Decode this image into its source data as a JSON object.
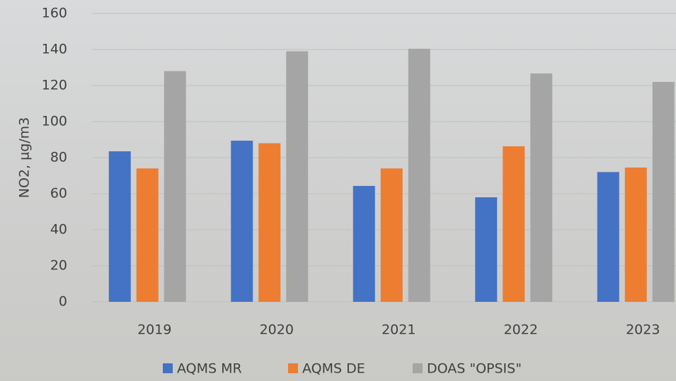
{
  "chart_data": {
    "type": "bar",
    "y_label": "NO2, µg/m3",
    "categories": [
      "2019",
      "2020",
      "2021",
      "2022",
      "2023"
    ],
    "series": [
      {
        "name": "AQMS MR",
        "color": "#4472c4",
        "values": [
          83.5,
          89.4,
          64.3,
          58,
          72
        ]
      },
      {
        "name": "AQMS DE",
        "color": "#ed7d31",
        "values": [
          74,
          88,
          74,
          86.3,
          74.5
        ]
      },
      {
        "name": "DOAS \"OPSIS\"",
        "color": "#a5a5a5",
        "values": [
          128,
          139,
          140.4,
          126.7,
          122
        ]
      }
    ],
    "ylim": [
      0,
      160
    ],
    "yticks": [
      0,
      20,
      40,
      60,
      80,
      100,
      120,
      140,
      160
    ],
    "grid": true
  }
}
